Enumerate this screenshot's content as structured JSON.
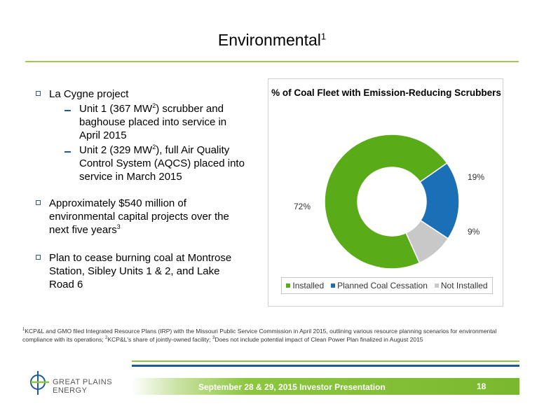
{
  "slide": {
    "title": "Environmental",
    "title_sup": "1",
    "page_number": "18"
  },
  "bullets": {
    "b1": "La Cygne project",
    "b1_sub1_pre": "Unit 1 (367 MW",
    "b1_sub1_sup": "2",
    "b1_sub1_post": ") scrubber and baghouse placed into service in April 2015",
    "b1_sub2_pre": "Unit 2 (329 MW",
    "b1_sub2_sup": "2",
    "b1_sub2_post": "), full Air Quality Control System (AQCS) placed into service in March 2015",
    "b2": "Approximately $540 million of environmental capital projects over the next five years",
    "b2_sup": "3",
    "b3": "Plan to cease burning coal at Montrose Station, Sibley Units 1 & 2, and Lake Road 6"
  },
  "chart_data": {
    "type": "pie",
    "subtype": "donut",
    "title": "% of Coal Fleet with Emission-Reducing Scrubbers",
    "legend_position": "bottom",
    "categories": [
      "Installed",
      "Planned Coal Cessation",
      "Not Installed"
    ],
    "values": [
      72,
      19,
      9
    ],
    "value_labels": [
      "72%",
      "19%",
      "9%"
    ],
    "colors": [
      "#5aab18",
      "#1a6fb5",
      "#c8c8c8"
    ]
  },
  "footnote": {
    "n1": "1",
    "t1": "KCP&L and GMO filed Integrated Resource Plans (IRP) with the Missouri Public Service Commission in April 2015, outlining various resource planning scenarios for environmental compliance with its operations; ",
    "n2": "2",
    "t2": "KCP&L's share of jointly-owned facility; ",
    "n3": "3",
    "t3": "Does not include potential impact of Clean Power Plan finalized in August 2015"
  },
  "footer": {
    "logo_text": "GREAT PLAINS ENERGY",
    "event": "September 28 & 29, 2015 Investor Presentation"
  },
  "colors": {
    "accent_green": "#8cc63e",
    "accent_blue": "#1f5a9a"
  }
}
